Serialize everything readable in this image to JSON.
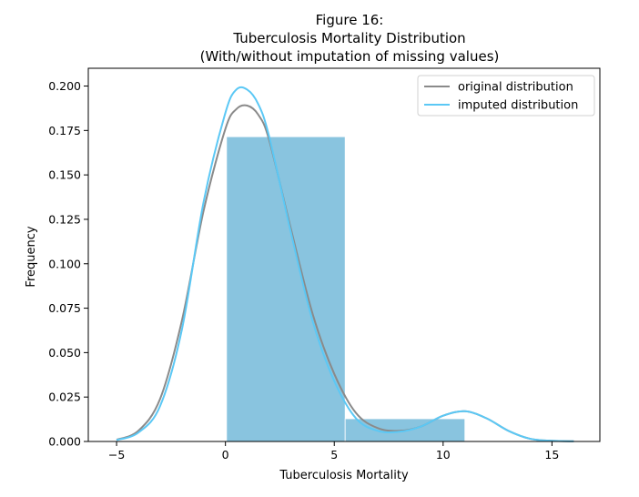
{
  "chart_data": {
    "type": "bar",
    "title": [
      "Figure 16:",
      "Tuberculosis Mortality Distribution",
      "(With/without imputation of missing values)"
    ],
    "xlabel": "Tuberculosis Mortality",
    "ylabel": "Frequency",
    "xlim": [
      -6.3,
      17.2
    ],
    "ylim": [
      0,
      0.21
    ],
    "xticks": [
      -5,
      0,
      5,
      10,
      15
    ],
    "xtick_labels": [
      "−5",
      "0",
      "5",
      "10",
      "15"
    ],
    "yticks": [
      0,
      0.025,
      0.05,
      0.075,
      0.1,
      0.125,
      0.15,
      0.175,
      0.2
    ],
    "ytick_labels": [
      "0.000",
      "0.025",
      "0.050",
      "0.075",
      "0.100",
      "0.125",
      "0.150",
      "0.175",
      "0.200"
    ],
    "grid": false,
    "legend_position": "top-right",
    "histogram": {
      "color": "#89c4df",
      "bins": [
        {
          "x0": 0.05,
          "x1": 5.5,
          "value": 0.1715
        },
        {
          "x0": 5.5,
          "x1": 11.0,
          "value": 0.0128
        }
      ]
    },
    "series": [
      {
        "name": "original distribution",
        "color": "#8a8a8a",
        "x": [
          -5.0,
          -4.0,
          -3.0,
          -2.0,
          -1.0,
          0.0,
          0.5,
          1.0,
          1.5,
          2.0,
          3.0,
          4.0,
          5.0,
          6.0,
          7.0,
          8.0,
          9.0,
          10.0,
          11.0,
          12.0,
          13.0,
          14.0,
          15.0,
          16.0
        ],
        "y": [
          0.001,
          0.006,
          0.024,
          0.068,
          0.13,
          0.176,
          0.187,
          0.189,
          0.184,
          0.17,
          0.12,
          0.072,
          0.038,
          0.016,
          0.0075,
          0.006,
          0.0085,
          0.0145,
          0.017,
          0.013,
          0.006,
          0.0015,
          0.0004,
          0.0001
        ]
      },
      {
        "name": "imputed distribution",
        "color": "#5bc8f5",
        "x": [
          -5.0,
          -4.0,
          -3.0,
          -2.0,
          -1.0,
          0.0,
          0.5,
          1.0,
          1.5,
          2.0,
          3.0,
          4.0,
          5.0,
          6.0,
          7.0,
          8.0,
          9.0,
          10.0,
          11.0,
          12.0,
          13.0,
          14.0,
          15.0,
          16.0
        ],
        "y": [
          0.0008,
          0.005,
          0.02,
          0.063,
          0.135,
          0.185,
          0.198,
          0.198,
          0.19,
          0.172,
          0.118,
          0.068,
          0.034,
          0.013,
          0.006,
          0.0055,
          0.0085,
          0.0145,
          0.017,
          0.013,
          0.006,
          0.0015,
          0.0004,
          0.0001
        ]
      }
    ]
  }
}
